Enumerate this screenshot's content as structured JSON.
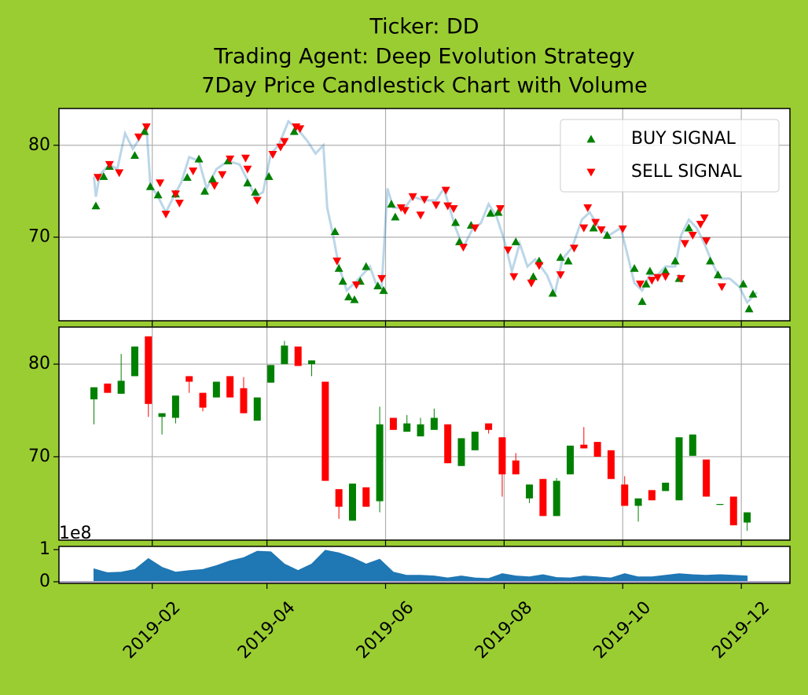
{
  "chart_data": [
    {
      "type": "line",
      "title": [
        "Ticker: DD",
        "Trading Agent: Deep Evolution Strategy",
        "7Day Price Candlestick Chart with Volume"
      ],
      "x": [
        "2019-01-02",
        "2019-01-03",
        "2019-01-05",
        "2019-01-10",
        "2019-01-14",
        "2019-01-18",
        "2019-01-22",
        "2019-01-26",
        "2019-01-29",
        "2019-01-31",
        "2019-02-04",
        "2019-02-08",
        "2019-02-12",
        "2019-02-16",
        "2019-02-20",
        "2019-02-25",
        "2019-03-01",
        "2019-03-06",
        "2019-03-12",
        "2019-03-18",
        "2019-03-22",
        "2019-03-26",
        "2019-03-30",
        "2019-04-03",
        "2019-04-07",
        "2019-04-12",
        "2019-04-17",
        "2019-04-22",
        "2019-04-26",
        "2019-04-30",
        "2019-05-02",
        "2019-05-05",
        "2019-05-08",
        "2019-05-12",
        "2019-05-16",
        "2019-05-20",
        "2019-05-24",
        "2019-05-27",
        "2019-05-30",
        "2019-06-02",
        "2019-06-05",
        "2019-06-11",
        "2019-06-15",
        "2019-06-21",
        "2019-06-27",
        "2019-07-01",
        "2019-07-07",
        "2019-07-11",
        "2019-07-16",
        "2019-07-20",
        "2019-07-24",
        "2019-07-28",
        "2019-08-01",
        "2019-08-05",
        "2019-08-09",
        "2019-08-13",
        "2019-08-17",
        "2019-08-23",
        "2019-08-27",
        "2019-08-31",
        "2019-09-05",
        "2019-09-10",
        "2019-09-14",
        "2019-09-19",
        "2019-09-24",
        "2019-09-30",
        "2019-10-04",
        "2019-10-07",
        "2019-10-11",
        "2019-10-15",
        "2019-10-19",
        "2019-10-23",
        "2019-10-28",
        "2019-10-31",
        "2019-11-04",
        "2019-11-08",
        "2019-11-12",
        "2019-11-16",
        "2019-11-20",
        "2019-11-25",
        "2019-11-30",
        "2019-12-04",
        "2019-12-09"
      ],
      "values": [
        76.6,
        74.4,
        76.8,
        77.9,
        77.4,
        81.3,
        79.6,
        80.9,
        82.1,
        75.7,
        74.4,
        72.7,
        74.4,
        76.0,
        78.7,
        78.3,
        75.3,
        77.4,
        78.3,
        77.9,
        76.2,
        74.4,
        74.9,
        79.1,
        80.0,
        82.6,
        81.7,
        80.4,
        79.1,
        80.0,
        73.2,
        70.2,
        66.8,
        64.2,
        65.0,
        65.9,
        66.8,
        65.0,
        64.6,
        75.3,
        73.2,
        73.2,
        74.4,
        74.0,
        74.0,
        75.3,
        71.0,
        68.9,
        71.0,
        71.5,
        73.6,
        72.3,
        69.7,
        66.3,
        69.3,
        66.8,
        67.6,
        65.9,
        63.8,
        67.6,
        68.9,
        71.9,
        72.7,
        71.0,
        70.2,
        71.0,
        67.6,
        65.0,
        64.2,
        65.9,
        65.9,
        66.8,
        66.8,
        70.2,
        71.9,
        71.0,
        69.3,
        67.2,
        65.5,
        65.5,
        64.6,
        62.9,
        64.0
      ],
      "color": "#1f77b4",
      "alpha": 0.3,
      "series": [
        {
          "name": "BUY SIGNAL",
          "color": "green",
          "marker": "^",
          "x": [
            "2019-01-03",
            "2019-01-07",
            "2019-01-10",
            "2019-01-23",
            "2019-01-28",
            "2019-01-31",
            "2019-02-04",
            "2019-02-13",
            "2019-02-19",
            "2019-02-25",
            "2019-02-28",
            "2019-03-04",
            "2019-03-12",
            "2019-03-22",
            "2019-03-26",
            "2019-04-02",
            "2019-04-15",
            "2019-05-06",
            "2019-05-08",
            "2019-05-10",
            "2019-05-13",
            "2019-05-16",
            "2019-05-19",
            "2019-05-22",
            "2019-05-28",
            "2019-05-31",
            "2019-06-04",
            "2019-06-06",
            "2019-07-07",
            "2019-07-09",
            "2019-07-15",
            "2019-07-25",
            "2019-07-29",
            "2019-08-07",
            "2019-08-16",
            "2019-08-19",
            "2019-08-26",
            "2019-08-30",
            "2019-09-03",
            "2019-09-16",
            "2019-09-23",
            "2019-10-07",
            "2019-10-11",
            "2019-10-13",
            "2019-10-15",
            "2019-10-23",
            "2019-10-28",
            "2019-10-30",
            "2019-11-04",
            "2019-11-15",
            "2019-11-19",
            "2019-12-02",
            "2019-12-05",
            "2019-12-07"
          ],
          "values": [
            73.4,
            76.6,
            77.7,
            78.9,
            81.5,
            75.5,
            74.6,
            74.7,
            76.5,
            78.5,
            75.0,
            76.3,
            78.3,
            75.9,
            74.9,
            76.6,
            81.5,
            70.6,
            66.6,
            65.2,
            63.5,
            63.2,
            65.2,
            66.8,
            64.7,
            64.2,
            73.6,
            72.2,
            71.6,
            69.5,
            71.3,
            72.6,
            72.7,
            69.5,
            65.7,
            67.4,
            63.9,
            67.8,
            67.4,
            71.0,
            70.2,
            66.6,
            63.0,
            64.9,
            66.3,
            66.3,
            67.4,
            65.5,
            71.0,
            67.4,
            65.9,
            64.9,
            62.2,
            63.8
          ]
        },
        {
          "name": "SELL SIGNAL",
          "color": "red",
          "marker": "v",
          "x": [
            "2019-01-04",
            "2019-01-10",
            "2019-01-15",
            "2019-01-25",
            "2019-01-29",
            "2019-02-05",
            "2019-02-08",
            "2019-02-13",
            "2019-02-15",
            "2019-02-22",
            "2019-03-05",
            "2019-03-09",
            "2019-03-13",
            "2019-03-21",
            "2019-03-22",
            "2019-03-27",
            "2019-04-04",
            "2019-04-08",
            "2019-04-10",
            "2019-04-16",
            "2019-04-18",
            "2019-05-07",
            "2019-05-17",
            "2019-05-30",
            "2019-06-09",
            "2019-06-11",
            "2019-06-15",
            "2019-06-19",
            "2019-06-21",
            "2019-06-27",
            "2019-07-02",
            "2019-07-03",
            "2019-07-06",
            "2019-07-11",
            "2019-07-17",
            "2019-07-30",
            "2019-08-03",
            "2019-08-06",
            "2019-08-15",
            "2019-08-19",
            "2019-08-30",
            "2019-09-06",
            "2019-09-11",
            "2019-09-13",
            "2019-09-17",
            "2019-09-20",
            "2019-10-01",
            "2019-10-10",
            "2019-10-16",
            "2019-10-19",
            "2019-10-23",
            "2019-10-31",
            "2019-11-02",
            "2019-11-06",
            "2019-11-10",
            "2019-11-12",
            "2019-11-13",
            "2019-11-21"
          ],
          "values": [
            76.5,
            77.9,
            77.0,
            80.9,
            82.0,
            75.9,
            72.5,
            74.7,
            73.7,
            77.2,
            75.6,
            76.8,
            78.5,
            78.6,
            77.4,
            74.0,
            79.0,
            79.8,
            80.4,
            82.0,
            81.8,
            67.4,
            64.8,
            65.5,
            73.2,
            72.9,
            74.4,
            72.4,
            74.1,
            73.5,
            75.1,
            73.4,
            73.1,
            68.9,
            71.0,
            73.1,
            68.6,
            65.7,
            65.0,
            66.9,
            65.9,
            68.8,
            71.0,
            73.2,
            71.6,
            70.8,
            70.9,
            64.9,
            65.3,
            65.6,
            65.7,
            65.5,
            69.3,
            70.2,
            71.4,
            72.1,
            69.6,
            64.6
          ]
        }
      ],
      "ylim": [
        60.9,
        84.0
      ],
      "yticks": [
        70,
        80
      ],
      "xlim": [
        "2018-12-15",
        "2019-12-26"
      ],
      "xticks": [
        "2019-02",
        "2019-04",
        "2019-06",
        "2019-08",
        "2019-10",
        "2019-12"
      ],
      "grid": true,
      "legend": "upper right"
    },
    {
      "type": "candlestick",
      "x": [
        "2019-01-02",
        "2019-01-09",
        "2019-01-16",
        "2019-01-23",
        "2019-01-30",
        "2019-02-06",
        "2019-02-13",
        "2019-02-20",
        "2019-02-27",
        "2019-03-06",
        "2019-03-13",
        "2019-03-20",
        "2019-03-27",
        "2019-04-03",
        "2019-04-10",
        "2019-04-17",
        "2019-04-24",
        "2019-05-01",
        "2019-05-08",
        "2019-05-15",
        "2019-05-22",
        "2019-05-29",
        "2019-06-05",
        "2019-06-12",
        "2019-06-19",
        "2019-06-26",
        "2019-07-03",
        "2019-07-10",
        "2019-07-17",
        "2019-07-24",
        "2019-07-31",
        "2019-08-07",
        "2019-08-14",
        "2019-08-21",
        "2019-08-28",
        "2019-09-04",
        "2019-09-11",
        "2019-09-18",
        "2019-09-25",
        "2019-10-02",
        "2019-10-09",
        "2019-10-16",
        "2019-10-23",
        "2019-10-30",
        "2019-11-06",
        "2019-11-13",
        "2019-11-20",
        "2019-11-27",
        "2019-12-04"
      ],
      "open": [
        76.2,
        77.9,
        76.8,
        78.7,
        83.0,
        74.3,
        74.2,
        78.7,
        76.9,
        76.4,
        78.7,
        77.4,
        73.9,
        78.0,
        80.0,
        81.9,
        80.0,
        78.1,
        66.5,
        63.1,
        66.7,
        65.2,
        74.2,
        72.7,
        72.2,
        72.9,
        73.5,
        69.0,
        70.7,
        73.6,
        72.1,
        69.6,
        65.5,
        67.6,
        63.6,
        68.1,
        71.3,
        71.6,
        70.7,
        67.0,
        64.7,
        66.4,
        66.3,
        65.3,
        70.1,
        69.7,
        64.8,
        65.7,
        62.9
      ],
      "high": [
        77.5,
        77.9,
        81.1,
        81.9,
        83.0,
        74.7,
        76.6,
        78.7,
        76.9,
        78.1,
        78.7,
        78.6,
        76.4,
        79.9,
        82.5,
        81.9,
        80.4,
        78.1,
        66.5,
        67.1,
        66.7,
        75.4,
        74.2,
        74.5,
        74.2,
        75.2,
        73.5,
        72.0,
        72.7,
        73.6,
        72.1,
        70.4,
        67.0,
        67.6,
        67.7,
        71.2,
        73.2,
        71.6,
        70.7,
        67.9,
        65.5,
        66.4,
        67.2,
        72.1,
        72.4,
        69.7,
        64.9,
        65.7,
        64.0
      ],
      "low": [
        73.5,
        76.9,
        76.8,
        78.7,
        74.3,
        72.4,
        73.6,
        76.9,
        74.9,
        76.4,
        76.4,
        74.7,
        73.9,
        78.0,
        80.0,
        79.8,
        78.7,
        67.4,
        63.3,
        63.1,
        64.6,
        64.0,
        72.9,
        72.7,
        72.2,
        72.9,
        69.3,
        69.0,
        70.7,
        72.5,
        65.7,
        68.1,
        65.0,
        63.6,
        63.6,
        68.1,
        70.9,
        70.0,
        67.6,
        64.7,
        63.0,
        65.3,
        66.3,
        65.3,
        70.1,
        65.7,
        64.8,
        62.6,
        62.0
      ],
      "close": [
        77.5,
        76.9,
        78.2,
        81.9,
        75.7,
        74.7,
        76.6,
        78.1,
        75.3,
        78.1,
        76.4,
        74.7,
        76.4,
        79.9,
        82.0,
        79.8,
        80.4,
        67.4,
        64.6,
        67.1,
        64.6,
        73.5,
        72.9,
        73.6,
        73.5,
        74.2,
        69.3,
        72.0,
        72.7,
        72.9,
        68.1,
        68.1,
        67.0,
        63.6,
        67.4,
        71.2,
        70.9,
        70.0,
        67.6,
        64.7,
        65.5,
        65.3,
        67.2,
        72.1,
        72.4,
        65.7,
        64.9,
        62.6,
        64.0
      ],
      "up_color": "green",
      "down_color": "red",
      "ylim": [
        61.0,
        84.0
      ],
      "yticks": [
        70,
        80
      ],
      "xlim": [
        "2018-12-15",
        "2019-12-26"
      ],
      "xticks": [
        "2019-02",
        "2019-04",
        "2019-06",
        "2019-08",
        "2019-10",
        "2019-12"
      ],
      "grid": true
    },
    {
      "type": "area",
      "x": [
        "2019-01-02",
        "2019-01-09",
        "2019-01-16",
        "2019-01-23",
        "2019-01-30",
        "2019-02-06",
        "2019-02-13",
        "2019-02-20",
        "2019-02-27",
        "2019-03-06",
        "2019-03-13",
        "2019-03-20",
        "2019-03-27",
        "2019-04-03",
        "2019-04-10",
        "2019-04-17",
        "2019-04-24",
        "2019-05-01",
        "2019-05-08",
        "2019-05-15",
        "2019-05-22",
        "2019-05-29",
        "2019-06-05",
        "2019-06-12",
        "2019-06-19",
        "2019-06-26",
        "2019-07-03",
        "2019-07-10",
        "2019-07-17",
        "2019-07-24",
        "2019-07-31",
        "2019-08-07",
        "2019-08-14",
        "2019-08-21",
        "2019-08-28",
        "2019-09-04",
        "2019-09-11",
        "2019-09-18",
        "2019-09-25",
        "2019-10-02",
        "2019-10-09",
        "2019-10-16",
        "2019-10-23",
        "2019-10-30",
        "2019-11-06",
        "2019-11-13",
        "2019-11-20",
        "2019-11-27",
        "2019-12-04"
      ],
      "values": [
        0.4,
        0.28,
        0.3,
        0.38,
        0.72,
        0.45,
        0.3,
        0.35,
        0.38,
        0.5,
        0.65,
        0.75,
        0.95,
        0.93,
        0.55,
        0.35,
        0.55,
        0.98,
        0.9,
        0.75,
        0.55,
        0.7,
        0.3,
        0.2,
        0.2,
        0.18,
        0.12,
        0.18,
        0.12,
        0.1,
        0.25,
        0.18,
        0.15,
        0.22,
        0.13,
        0.12,
        0.18,
        0.15,
        0.12,
        0.25,
        0.15,
        0.15,
        0.2,
        0.25,
        0.22,
        0.2,
        0.22,
        0.2,
        0.18
      ],
      "color": "#1f77b4",
      "offset_label": "1e8",
      "ylim": [
        -0.05,
        1.1
      ],
      "yticks": [
        0,
        1
      ],
      "xlim": [
        "2018-12-15",
        "2019-12-26"
      ],
      "xticks": [
        "2019-02",
        "2019-04",
        "2019-06",
        "2019-08",
        "2019-10",
        "2019-12"
      ]
    }
  ]
}
